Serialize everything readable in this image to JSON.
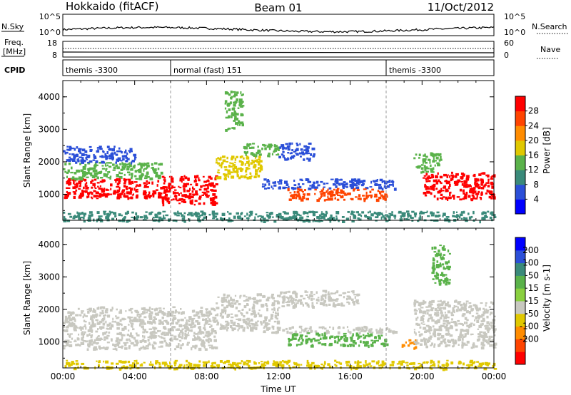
{
  "header": {
    "title": "Hokkaido (fitACF)",
    "beam": "Beam 01",
    "date": "11/Oct/2012"
  },
  "noise_panel": {
    "left_label": "N.Sky",
    "right_label": "N.Search",
    "left_ticks": [
      "10^5",
      "10^0"
    ],
    "right_ticks": [
      "10^5",
      "10^0"
    ]
  },
  "freq_panel": {
    "left_label_line1": "Freq.",
    "left_label_line2": "[MHz]",
    "right_label": "Nave",
    "left_ticks": [
      "18",
      "8"
    ],
    "right_ticks": [
      "60",
      "0"
    ]
  },
  "cpid_panel": {
    "label": "CPID",
    "segments": [
      {
        "start_hour": 0,
        "end_hour": 6,
        "text": "themis -3300"
      },
      {
        "start_hour": 6,
        "end_hour": 18,
        "text": "normal (fast) 151"
      },
      {
        "start_hour": 18,
        "end_hour": 24,
        "text": "themis -3300"
      }
    ]
  },
  "chart_data": [
    {
      "type": "heatmap",
      "name": "power",
      "xlabel": "",
      "ylabel": "Slant Range [km]",
      "xlim": [
        0,
        24
      ],
      "ylim": [
        200,
        4500
      ],
      "yticks": [
        1000,
        2000,
        3000,
        4000
      ],
      "colorbar": {
        "label": "Power [dB]",
        "ticks": [
          "4",
          "8",
          "12",
          "16",
          "20",
          "24",
          "28"
        ],
        "colors": [
          "#0000ff",
          "#2b4fd8",
          "#3a8a7a",
          "#5ab24a",
          "#e0c800",
          "#ff8c00",
          "#ff4400",
          "#ff0000"
        ]
      },
      "regions": [
        {
          "t0": 0.0,
          "t1": 5.5,
          "r0": 900,
          "r1": 1500,
          "level": 7
        },
        {
          "t0": 0.0,
          "t1": 5.5,
          "r0": 1500,
          "r1": 2000,
          "level": 3
        },
        {
          "t0": 0.0,
          "t1": 4.0,
          "r0": 2000,
          "r1": 2500,
          "level": 1
        },
        {
          "t0": 5.5,
          "t1": 8.5,
          "r0": 700,
          "r1": 1600,
          "level": 7
        },
        {
          "t0": 8.5,
          "t1": 11.0,
          "r0": 1500,
          "r1": 2200,
          "level": 4
        },
        {
          "t0": 10.0,
          "t1": 12.0,
          "r0": 2200,
          "r1": 2600,
          "level": 3
        },
        {
          "t0": 12.0,
          "t1": 14.0,
          "r0": 2100,
          "r1": 2600,
          "level": 1
        },
        {
          "t0": 11.0,
          "t1": 18.5,
          "r0": 1200,
          "r1": 1500,
          "level": 1
        },
        {
          "t0": 12.5,
          "t1": 18.0,
          "r0": 850,
          "r1": 1200,
          "level": 6
        },
        {
          "t0": 20.0,
          "t1": 24.0,
          "r0": 850,
          "r1": 1700,
          "level": 7
        },
        {
          "t0": 19.5,
          "t1": 21.0,
          "r0": 1700,
          "r1": 2300,
          "level": 3
        },
        {
          "t0": 9.0,
          "t1": 10.0,
          "r0": 3000,
          "r1": 4200,
          "level": 3
        },
        {
          "t0": 0.0,
          "t1": 24.0,
          "r0": 200,
          "r1": 500,
          "level": 2
        }
      ]
    },
    {
      "type": "heatmap",
      "name": "velocity",
      "xlabel": "Time UT",
      "ylabel": "Slant Range [km]",
      "xlim": [
        0,
        24
      ],
      "ylim": [
        200,
        4500
      ],
      "xticks": [
        "00:00",
        "04:00",
        "08:00",
        "12:00",
        "16:00",
        "20:00",
        "00:00"
      ],
      "yticks": [
        1000,
        2000,
        3000,
        4000
      ],
      "colorbar": {
        "label": "Velocity [m s-1]",
        "ticks": [
          "200",
          "100",
          "50",
          "15",
          "-15",
          "-50",
          "-100",
          "-200"
        ],
        "colors": [
          "#0000ff",
          "#2b4fd8",
          "#3a8a7a",
          "#5ab24a",
          "#8ad040",
          "#c8c8c0",
          "#e0c800",
          "#ff8c00",
          "#ff4400",
          "#ff0000"
        ]
      },
      "regions": [
        {
          "t0": 0.0,
          "t1": 8.5,
          "r0": 800,
          "r1": 2100,
          "value": -10
        },
        {
          "t0": 8.5,
          "t1": 12.0,
          "r0": 1400,
          "r1": 2500,
          "value": -10
        },
        {
          "t0": 12.0,
          "t1": 16.5,
          "r0": 2100,
          "r1": 2600,
          "value": -10
        },
        {
          "t0": 11.0,
          "t1": 18.5,
          "r0": 1300,
          "r1": 1500,
          "value": -10
        },
        {
          "t0": 12.5,
          "t1": 18.0,
          "r0": 900,
          "r1": 1300,
          "value": 30
        },
        {
          "t0": 18.8,
          "t1": 19.6,
          "r0": 800,
          "r1": 1100,
          "value": -60
        },
        {
          "t0": 19.5,
          "t1": 24.0,
          "r0": 850,
          "r1": 2300,
          "value": -10
        },
        {
          "t0": 20.5,
          "t1": 21.5,
          "r0": 2800,
          "r1": 4000,
          "value": 30
        },
        {
          "t0": 0.0,
          "t1": 24.0,
          "r0": 200,
          "r1": 450,
          "value": -40
        }
      ]
    }
  ]
}
